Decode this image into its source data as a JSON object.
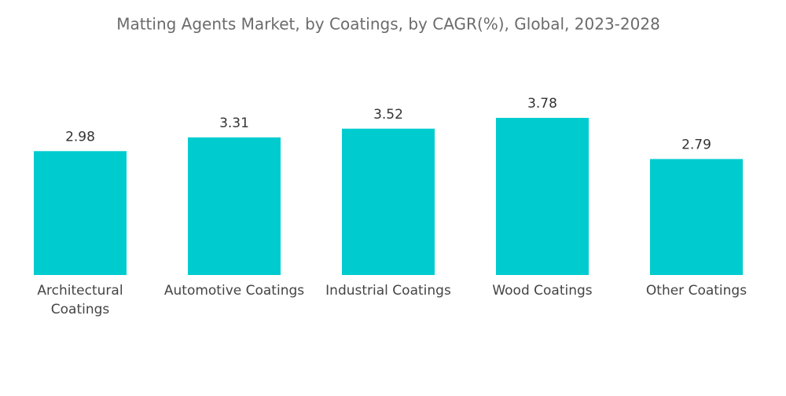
{
  "chart_data": {
    "type": "bar",
    "title": "Matting Agents Market, by Coatings, by CAGR(%),  Global, 2023-2028",
    "categories": [
      "Architectural Coatings",
      "Automotive Coatings",
      "Industrial Coatings",
      "Wood Coatings",
      "Other Coatings"
    ],
    "values": [
      2.98,
      3.31,
      3.52,
      3.78,
      2.79
    ],
    "color": "#00cccf"
  }
}
